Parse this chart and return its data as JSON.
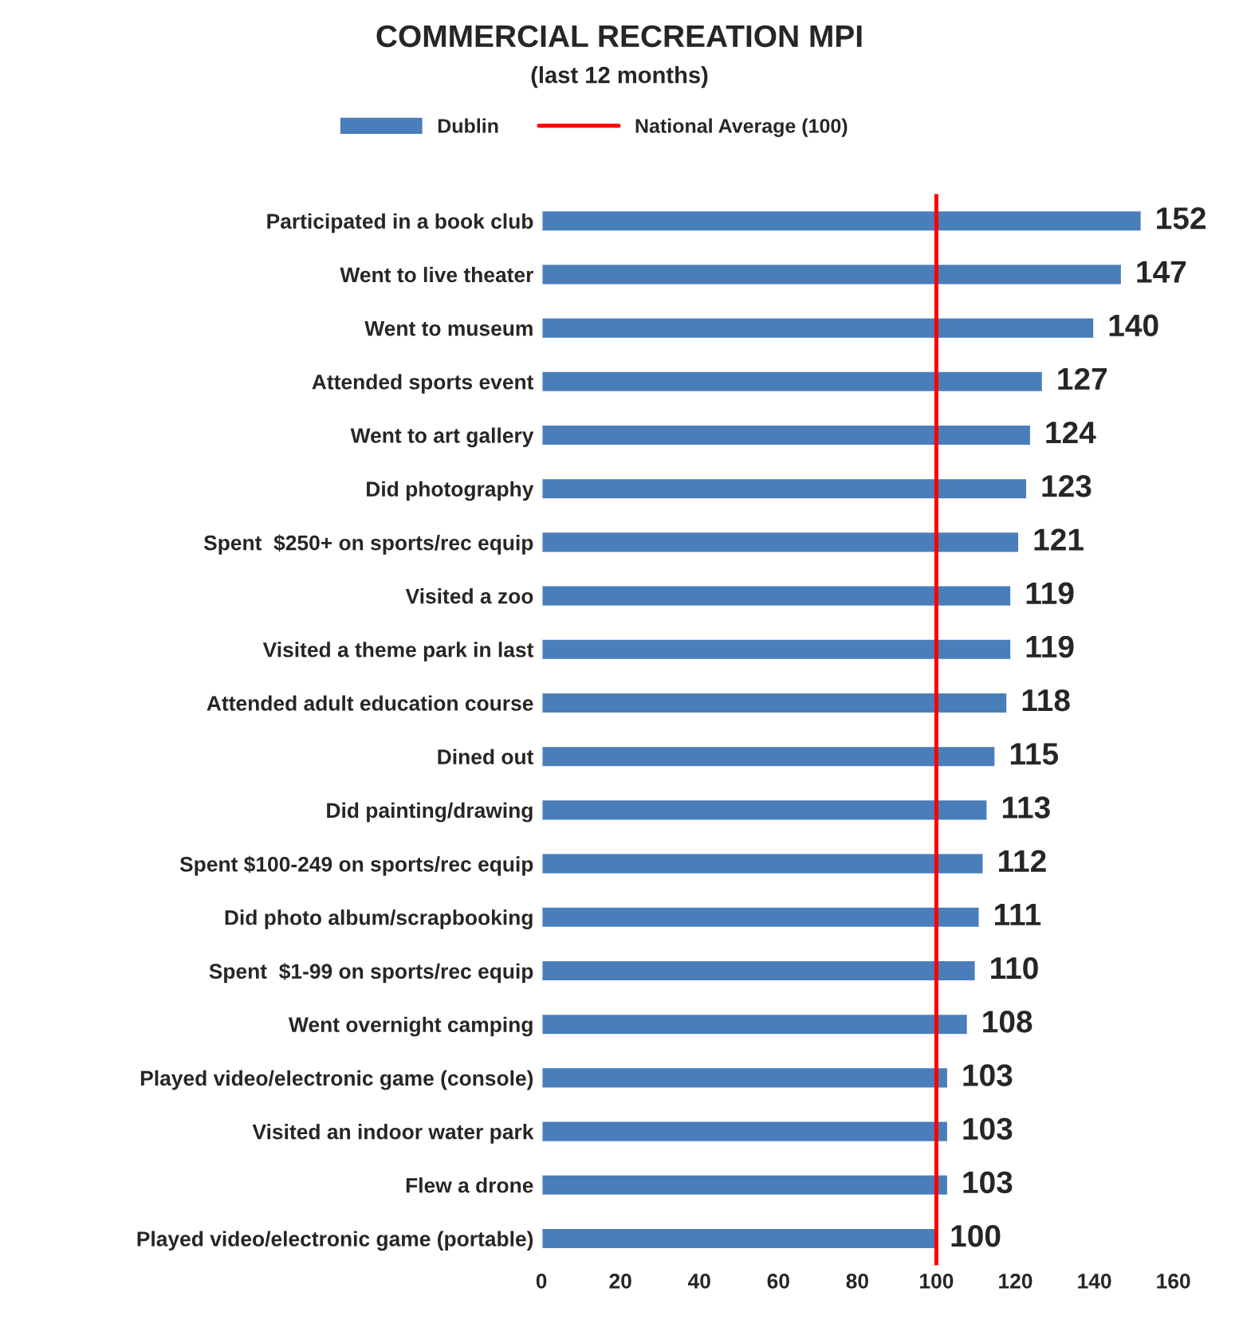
{
  "chart_data": {
    "type": "bar",
    "orientation": "horizontal",
    "title": "COMMERCIAL RECREATION MPI",
    "subtitle": "(last 12 months)",
    "categories": [
      "Participated in a book club",
      "Went to live theater",
      "Went to museum",
      "Attended sports event",
      "Went to art gallery",
      "Did photography",
      "Spent  $250+ on sports/rec equip",
      "Visited a zoo",
      "Visited a theme park in last",
      "Attended adult education course",
      "Dined out",
      "Did painting/drawing",
      "Spent $100-249 on sports/rec equip",
      "Did photo album/scrapbooking",
      "Spent  $1-99 on sports/rec equip",
      "Went overnight camping",
      "Played video/electronic game (console)",
      "Visited an indoor water park",
      "Flew a drone",
      "Played video/electronic game (portable)"
    ],
    "series": [
      {
        "name": "Dublin",
        "color": "#4a7ebb",
        "values": [
          152,
          147,
          140,
          127,
          124,
          123,
          121,
          119,
          119,
          118,
          115,
          113,
          112,
          111,
          110,
          108,
          103,
          103,
          103,
          100
        ]
      }
    ],
    "data_labels": true,
    "ref_lines": [
      {
        "axis": "x",
        "value": 100,
        "label": "National Average (100)",
        "color": "#ff0000",
        "line_style": "solid"
      }
    ],
    "xlim": [
      0,
      160
    ],
    "xticks": [
      0,
      20,
      40,
      60,
      80,
      100,
      120,
      140,
      160
    ],
    "legend": "top",
    "grid": false
  }
}
